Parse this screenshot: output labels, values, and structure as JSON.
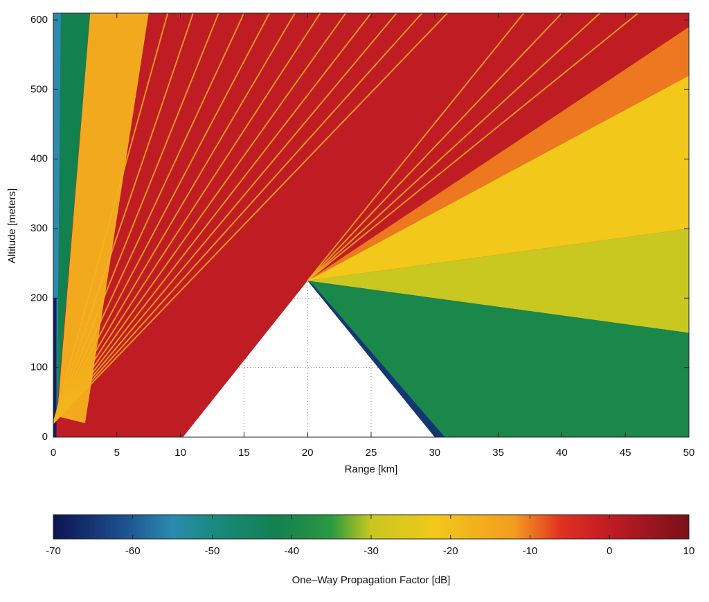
{
  "chart_data": {
    "type": "heatmap",
    "xlabel": "Range [km]",
    "ylabel": "Altitude [meters]",
    "xlim": [
      0,
      50
    ],
    "ylim": [
      0,
      610
    ],
    "xticks": [
      0,
      5,
      10,
      15,
      20,
      25,
      30,
      35,
      40,
      45,
      50
    ],
    "yticks": [
      0,
      100,
      200,
      300,
      400,
      500,
      600
    ],
    "grid": true,
    "colorbar_label": "One–Way Propagation Factor [dB]",
    "clim": [
      -70,
      10
    ],
    "cticks": [
      -70,
      -60,
      -50,
      -40,
      -30,
      -20,
      -10,
      0,
      10
    ],
    "colormap": [
      {
        "value": -70,
        "color": "#0b1450"
      },
      {
        "value": -62,
        "color": "#1a4a8a"
      },
      {
        "value": -55,
        "color": "#2a8ab0"
      },
      {
        "value": -50,
        "color": "#1a8a80"
      },
      {
        "value": -42,
        "color": "#138050"
      },
      {
        "value": -35,
        "color": "#2a9a40"
      },
      {
        "value": -30,
        "color": "#c8c820"
      },
      {
        "value": -22,
        "color": "#f2c81a"
      },
      {
        "value": -12,
        "color": "#f39c20"
      },
      {
        "value": -6,
        "color": "#e03020"
      },
      {
        "value": 0,
        "color": "#c01c24"
      },
      {
        "value": 10,
        "color": "#7a1018"
      }
    ],
    "regions": [
      {
        "x": [
          0,
          50,
          50,
          0
        ],
        "y": [
          0,
          0,
          610,
          610
        ],
        "value": 0
      },
      {
        "x": [
          0,
          0.3,
          0.6,
          0
        ],
        "y": [
          0,
          40,
          610,
          610
        ],
        "value": -55
      },
      {
        "x": [
          0,
          0.25,
          0.25,
          0
        ],
        "y": [
          0,
          0,
          200,
          200
        ],
        "value": -68
      },
      {
        "x": [
          0.3,
          2.9,
          0.6
        ],
        "y": [
          40,
          610,
          610
        ],
        "value": -42
      },
      {
        "x": [
          0.3,
          2.9,
          7.5,
          2.5
        ],
        "y": [
          30,
          610,
          610,
          20
        ],
        "value": -15
      },
      {
        "x": [
          20,
          50,
          50
        ],
        "y": [
          225,
          590,
          520
        ],
        "value": -10
      },
      {
        "x": [
          20,
          50,
          50
        ],
        "y": [
          225,
          520,
          300
        ],
        "value": -22
      },
      {
        "x": [
          20,
          50,
          50
        ],
        "y": [
          225,
          300,
          150
        ],
        "value": -30
      },
      {
        "x": [
          20,
          50,
          50,
          30
        ],
        "y": [
          225,
          150,
          0,
          0
        ],
        "value": -40
      },
      {
        "x": [
          20,
          30,
          30.8,
          20.5
        ],
        "y": [
          225,
          0,
          0,
          218
        ],
        "value": -65
      }
    ],
    "fringes": [
      {
        "x": [
          0,
          9
        ],
        "y": [
          20,
          610
        ],
        "value": -18
      },
      {
        "x": [
          0,
          11
        ],
        "y": [
          20,
          610
        ],
        "value": -18
      },
      {
        "x": [
          0,
          13
        ],
        "y": [
          20,
          610
        ],
        "value": -18
      },
      {
        "x": [
          0,
          15
        ],
        "y": [
          20,
          610
        ],
        "value": -18
      },
      {
        "x": [
          0,
          17
        ],
        "y": [
          20,
          610
        ],
        "value": -18
      },
      {
        "x": [
          0,
          19
        ],
        "y": [
          20,
          610
        ],
        "value": -18
      },
      {
        "x": [
          0,
          21
        ],
        "y": [
          20,
          610
        ],
        "value": -18
      },
      {
        "x": [
          0,
          23
        ],
        "y": [
          20,
          610
        ],
        "value": -18
      },
      {
        "x": [
          0,
          25
        ],
        "y": [
          20,
          610
        ],
        "value": -18
      },
      {
        "x": [
          0,
          27
        ],
        "y": [
          20,
          610
        ],
        "value": -18
      },
      {
        "x": [
          0,
          29
        ],
        "y": [
          20,
          610
        ],
        "value": -18
      },
      {
        "x": [
          0,
          31
        ],
        "y": [
          20,
          610
        ],
        "value": -18
      },
      {
        "x": [
          20,
          37
        ],
        "y": [
          225,
          610
        ],
        "value": -18
      },
      {
        "x": [
          20,
          40
        ],
        "y": [
          225,
          610
        ],
        "value": -18
      },
      {
        "x": [
          20,
          43
        ],
        "y": [
          225,
          610
        ],
        "value": -18
      },
      {
        "x": [
          20,
          46
        ],
        "y": [
          225,
          610
        ],
        "value": -18
      }
    ],
    "terrain": {
      "x": [
        10.2,
        20,
        30
      ],
      "y": [
        0,
        225,
        0
      ]
    }
  }
}
